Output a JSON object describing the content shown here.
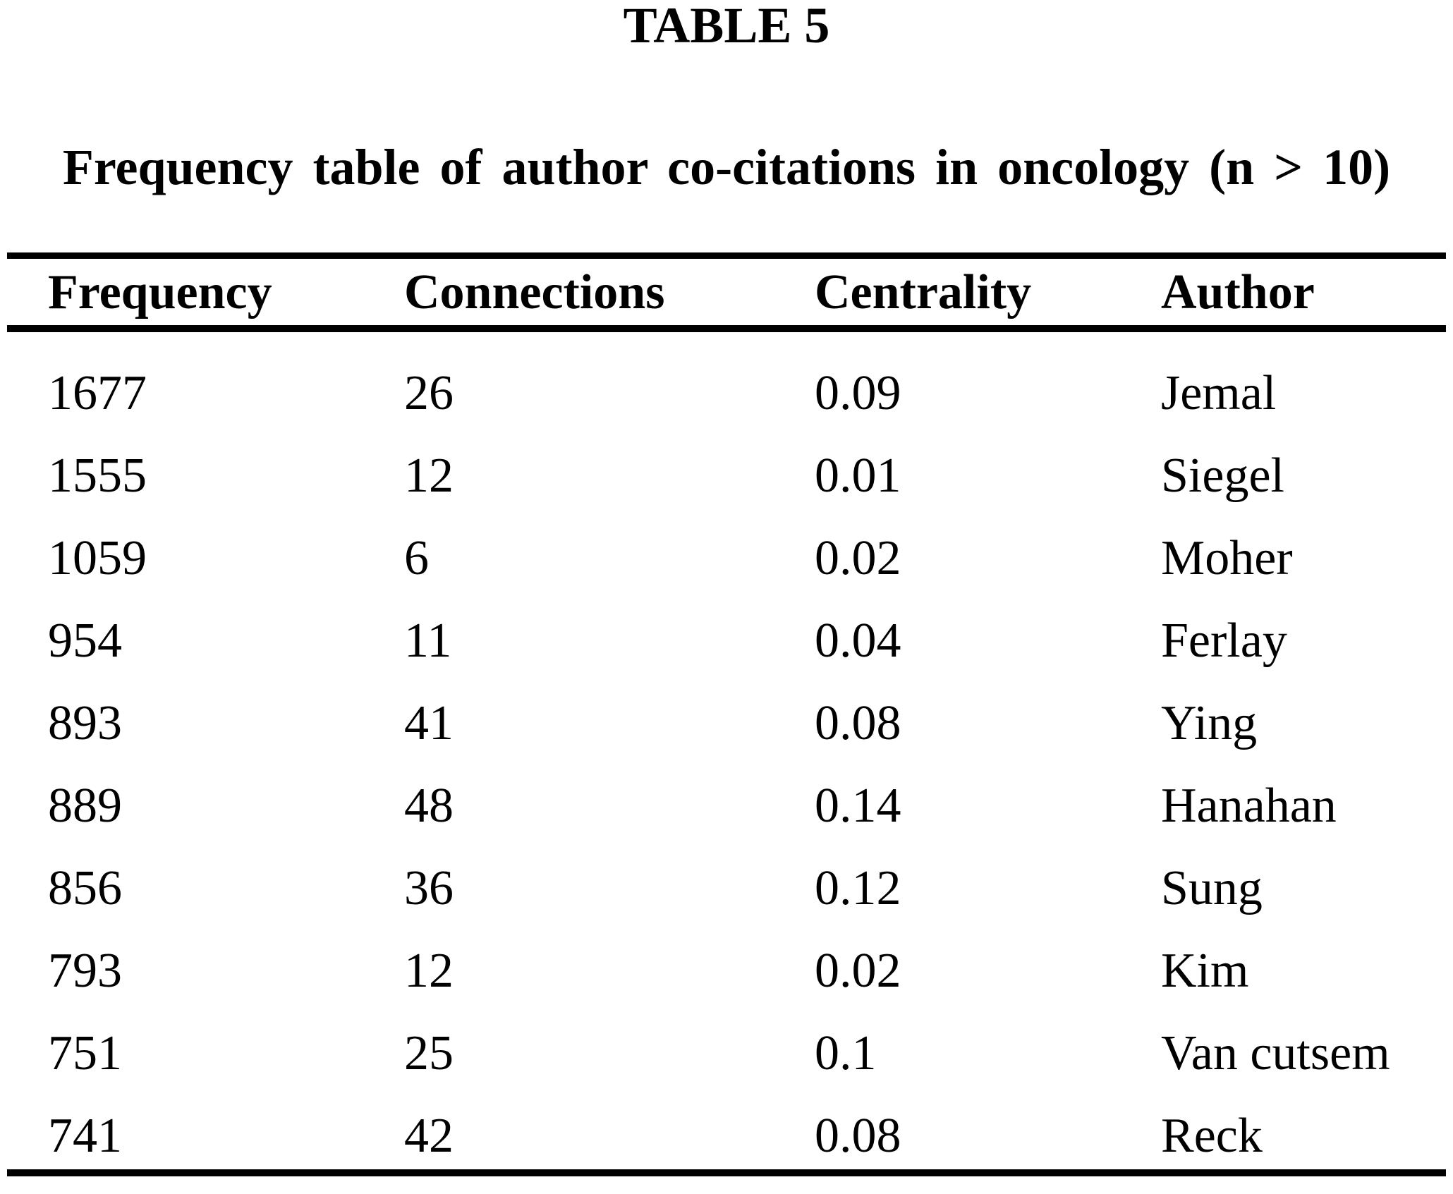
{
  "page": {
    "table_label": "TABLE 5",
    "caption": "Frequency table of author co-citations in oncology (n > 10)"
  },
  "table": {
    "columns": [
      "Frequency",
      "Connections",
      "Centrality",
      "Author"
    ],
    "rows": [
      {
        "frequency": "1677",
        "connections": "26",
        "centrality": "0.09",
        "author": "Jemal"
      },
      {
        "frequency": "1555",
        "connections": "12",
        "centrality": "0.01",
        "author": "Siegel"
      },
      {
        "frequency": "1059",
        "connections": "6",
        "centrality": "0.02",
        "author": "Moher"
      },
      {
        "frequency": "954",
        "connections": "11",
        "centrality": "0.04",
        "author": "Ferlay"
      },
      {
        "frequency": "893",
        "connections": "41",
        "centrality": "0.08",
        "author": "Ying"
      },
      {
        "frequency": "889",
        "connections": "48",
        "centrality": "0.14",
        "author": "Hanahan"
      },
      {
        "frequency": "856",
        "connections": "36",
        "centrality": "0.12",
        "author": "Sung"
      },
      {
        "frequency": "793",
        "connections": "12",
        "centrality": "0.02",
        "author": "Kim"
      },
      {
        "frequency": "751",
        "connections": "25",
        "centrality": "0.1",
        "author": "Van cutsem"
      },
      {
        "frequency": "741",
        "connections": "42",
        "centrality": "0.08",
        "author": "Reck"
      }
    ]
  },
  "chart_data": {
    "type": "table",
    "title": "TABLE 5",
    "caption": "Frequency table of author co-citations in oncology (n > 10)",
    "columns": [
      "Frequency",
      "Connections",
      "Centrality",
      "Author"
    ],
    "rows": [
      [
        1677,
        26,
        0.09,
        "Jemal"
      ],
      [
        1555,
        12,
        0.01,
        "Siegel"
      ],
      [
        1059,
        6,
        0.02,
        "Moher"
      ],
      [
        954,
        11,
        0.04,
        "Ferlay"
      ],
      [
        893,
        41,
        0.08,
        "Ying"
      ],
      [
        889,
        48,
        0.14,
        "Hanahan"
      ],
      [
        856,
        36,
        0.12,
        "Sung"
      ],
      [
        793,
        12,
        0.02,
        "Kim"
      ],
      [
        751,
        25,
        0.1,
        "Van cutsem"
      ],
      [
        741,
        42,
        0.08,
        "Reck"
      ]
    ]
  },
  "colors": {
    "background": "#ffffff",
    "text": "#000000",
    "rule": "#000000"
  }
}
